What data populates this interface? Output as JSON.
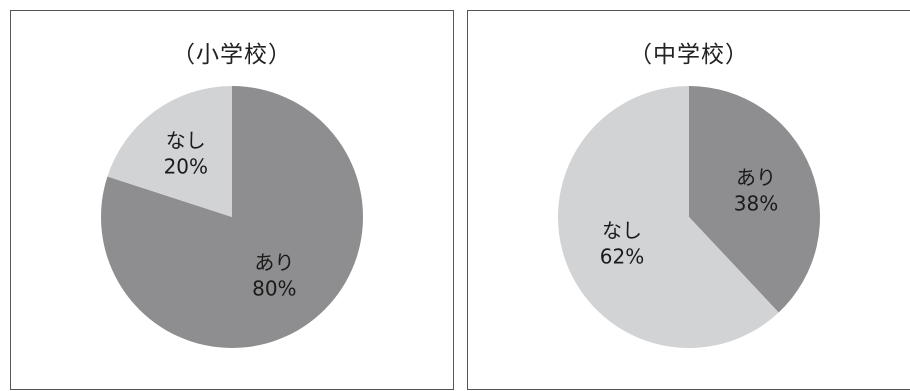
{
  "chart_data": [
    {
      "type": "pie",
      "title": "（小学校）",
      "slices": [
        {
          "label": "あり",
          "value": 80,
          "value_label": "80%",
          "color": "#8e8e90"
        },
        {
          "label": "なし",
          "value": 20,
          "value_label": "20%",
          "color": "#d2d3d5"
        }
      ]
    },
    {
      "type": "pie",
      "title": "（中学校）",
      "slices": [
        {
          "label": "あり",
          "value": 38,
          "value_label": "38%",
          "color": "#8e8e90"
        },
        {
          "label": "なし",
          "value": 62,
          "value_label": "62%",
          "color": "#d2d3d5"
        }
      ]
    }
  ]
}
